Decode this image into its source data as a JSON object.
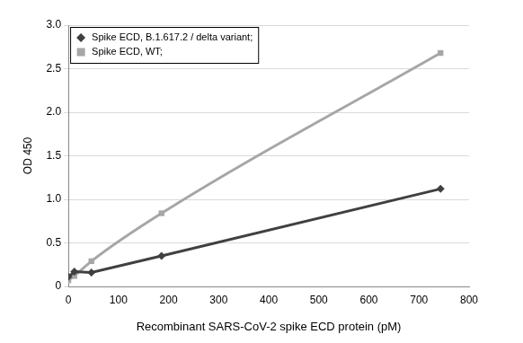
{
  "chart_data": {
    "type": "line",
    "x_label": "Recombinant SARS-CoV-2 spike ECD protein (pM)",
    "y_label": "OD 450",
    "xlim": [
      0,
      800
    ],
    "xticks": [
      0,
      100,
      200,
      300,
      400,
      500,
      600,
      700,
      800
    ],
    "ylim": [
      0,
      3
    ],
    "yticks": [
      0,
      0.5,
      1,
      1.5,
      2,
      2.5,
      3
    ],
    "grid": true,
    "legend": "upper left",
    "series": [
      {
        "name": "Spike ECD, B.1.617.2 / delta variant;",
        "color": "#404040",
        "marker": "diamond",
        "line_style": "solid",
        "x": [
          0,
          12,
          46,
          186,
          743
        ],
        "values": [
          0.11,
          0.17,
          0.16,
          0.35,
          1.12
        ]
      },
      {
        "name": "Spike ECD, WT;",
        "color": "#a6a6a6",
        "marker": "square",
        "line_style": "smooth",
        "x": [
          0,
          12,
          46,
          186,
          743
        ],
        "values": [
          0.07,
          0.12,
          0.29,
          0.84,
          2.68
        ]
      }
    ]
  }
}
